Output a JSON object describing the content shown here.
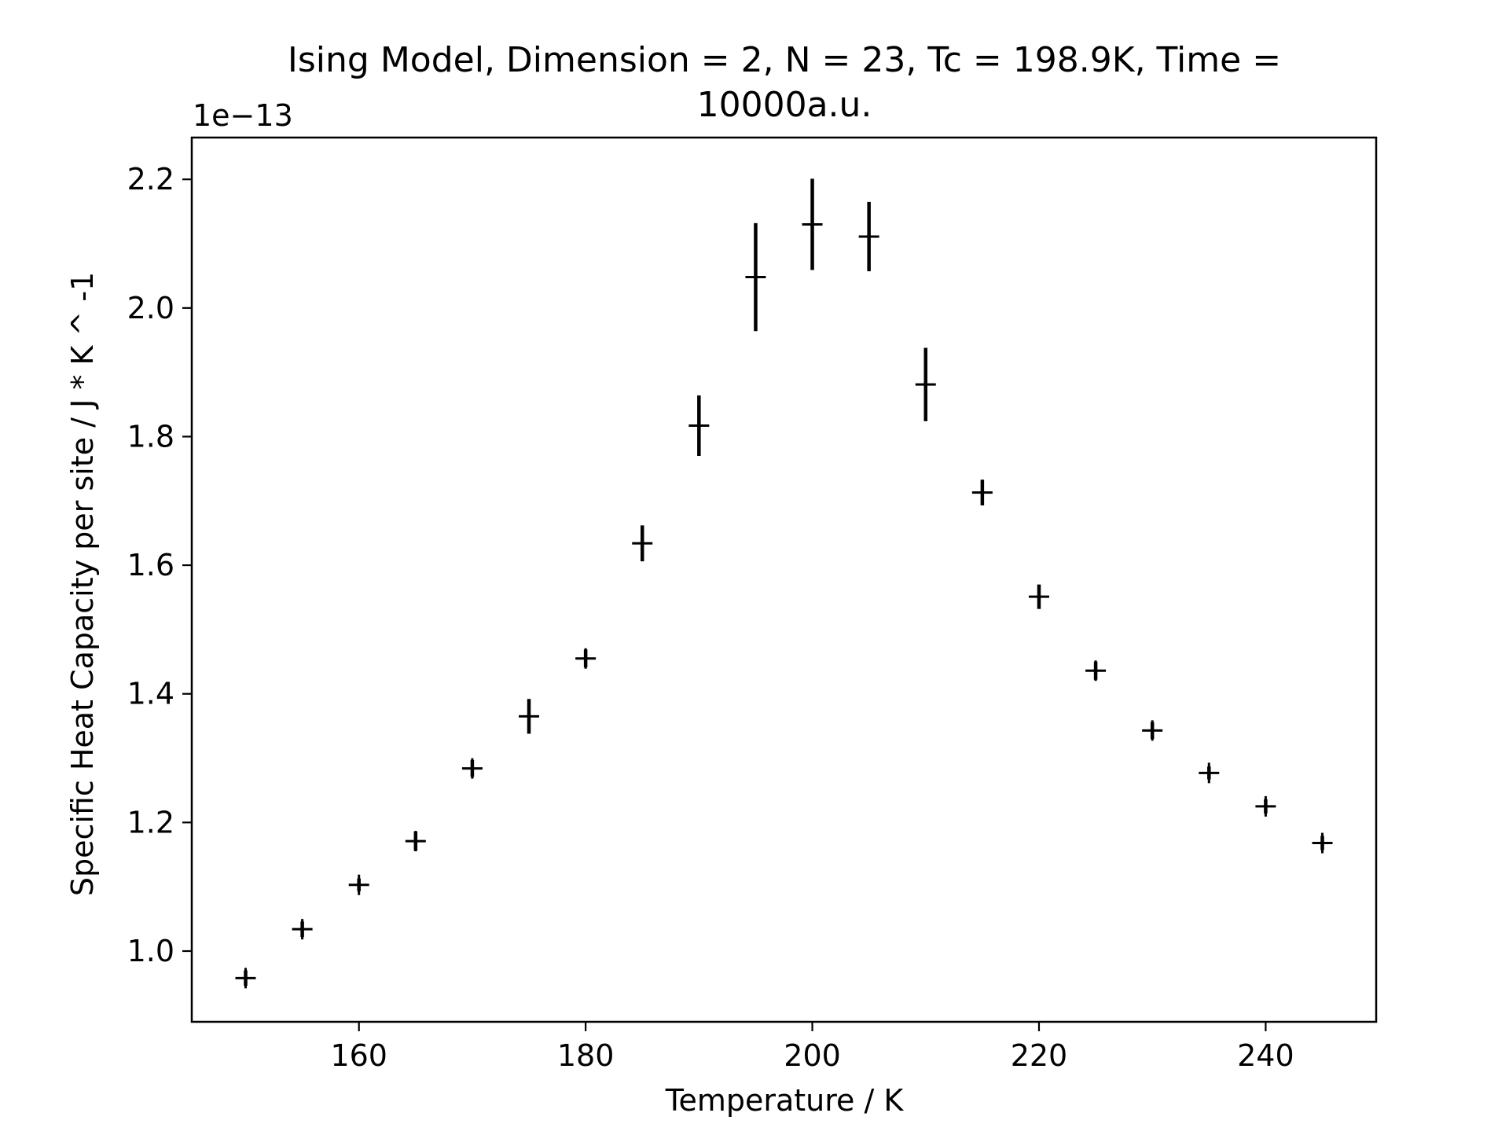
{
  "chart_data": {
    "type": "scatter",
    "title_line1": "Ising Model, Dimension = 2, N = 23, Tc = 198.9K, Time =",
    "title_line2": "10000a.u.",
    "xlabel": "Temperature / K",
    "ylabel": "Specific Heat Capacity per site / J * K ^ -1",
    "y_offset_label": "1e−13",
    "xlim": [
      145.25,
      249.75
    ],
    "ylim": [
      0.89,
      2.265
    ],
    "xticks": [
      {
        "value": 160,
        "label": "160"
      },
      {
        "value": 180,
        "label": "180"
      },
      {
        "value": 200,
        "label": "200"
      },
      {
        "value": 220,
        "label": "220"
      },
      {
        "value": 240,
        "label": "240"
      }
    ],
    "yticks": [
      {
        "value": 1.0,
        "label": "1.0"
      },
      {
        "value": 1.2,
        "label": "1.2"
      },
      {
        "value": 1.4,
        "label": "1.4"
      },
      {
        "value": 1.6,
        "label": "1.6"
      },
      {
        "value": 1.8,
        "label": "1.8"
      },
      {
        "value": 2.0,
        "label": "2.0"
      },
      {
        "value": 2.2,
        "label": "2.2"
      }
    ],
    "grid": false,
    "marker": "+",
    "color": "#000000",
    "series": [
      {
        "x": [
          150,
          155,
          160,
          165,
          170,
          175,
          180,
          185,
          190,
          195,
          200,
          205,
          210,
          215,
          220,
          225,
          230,
          235,
          240,
          245
        ],
        "y": [
          0.958,
          1.034,
          1.103,
          1.171,
          1.284,
          1.365,
          1.455,
          1.634,
          1.817,
          2.048,
          2.13,
          2.111,
          1.881,
          1.713,
          1.551,
          1.436,
          1.343,
          1.277,
          1.225,
          1.168
        ],
        "yerr": [
          0.012,
          0.012,
          0.01,
          0.015,
          0.013,
          0.027,
          0.014,
          0.028,
          0.047,
          0.084,
          0.071,
          0.054,
          0.057,
          0.02,
          0.019,
          0.014,
          0.013,
          0.01,
          0.011,
          0.011
        ]
      }
    ]
  }
}
